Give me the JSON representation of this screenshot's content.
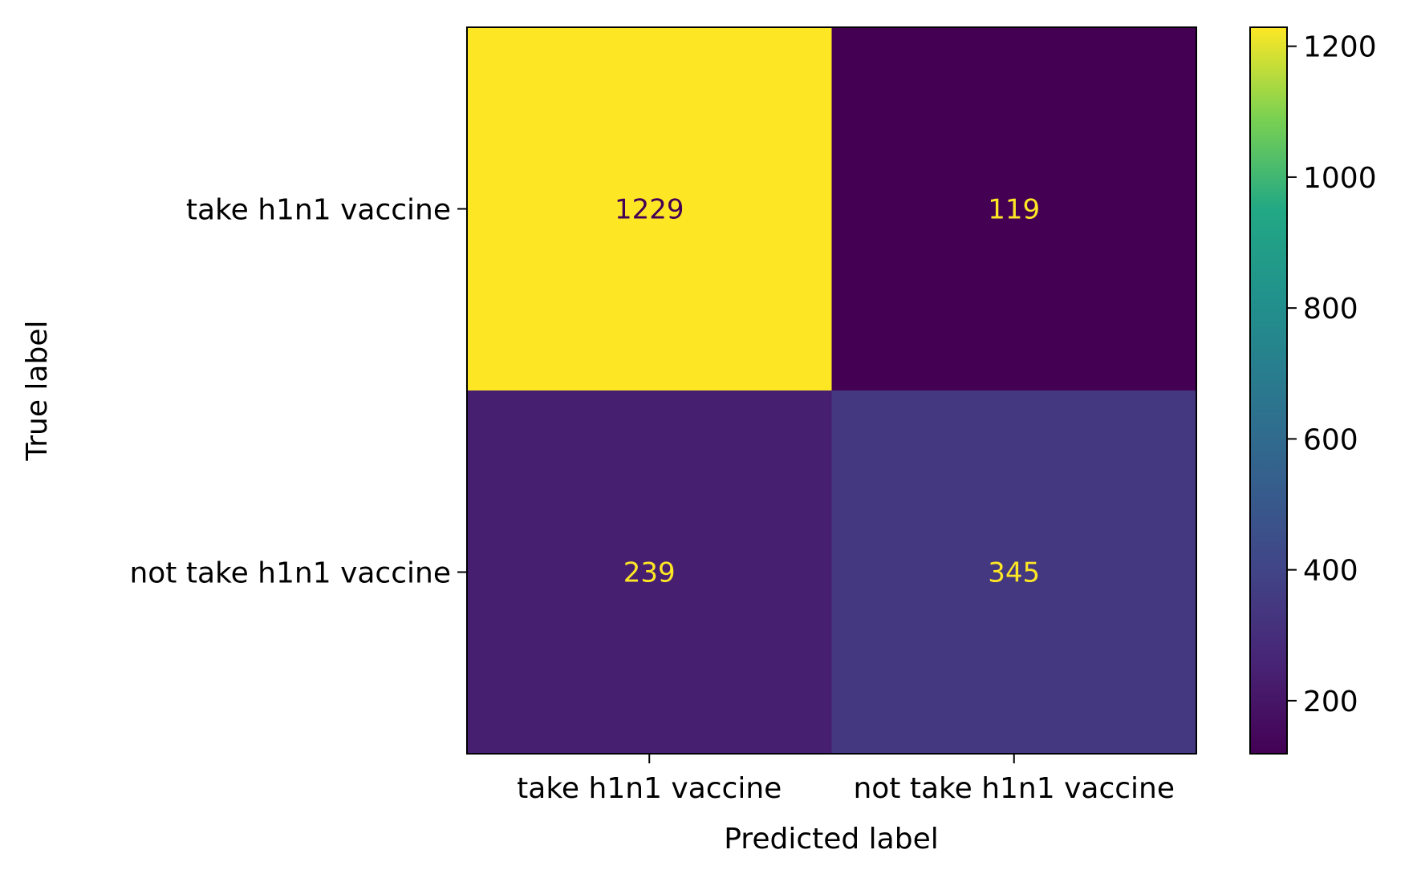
{
  "chart_data": {
    "type": "heatmap",
    "title": "",
    "xlabel": "Predicted label",
    "ylabel": "True label",
    "x_categories": [
      "take h1n1 vaccine",
      "not take h1n1 vaccine"
    ],
    "y_categories": [
      "take h1n1 vaccine",
      "not take h1n1 vaccine"
    ],
    "values": [
      [
        1229,
        119
      ],
      [
        239,
        345
      ]
    ],
    "colormap": "viridis",
    "colorbar": {
      "range": [
        119,
        1229
      ],
      "ticks": [
        200,
        400,
        600,
        800,
        1000,
        1200
      ],
      "tick_labels": [
        "200",
        "400",
        "600",
        "800",
        "1000",
        "1200"
      ]
    },
    "grid": false,
    "text_color_light": "#fde725",
    "text_color_dark": "#440154"
  }
}
